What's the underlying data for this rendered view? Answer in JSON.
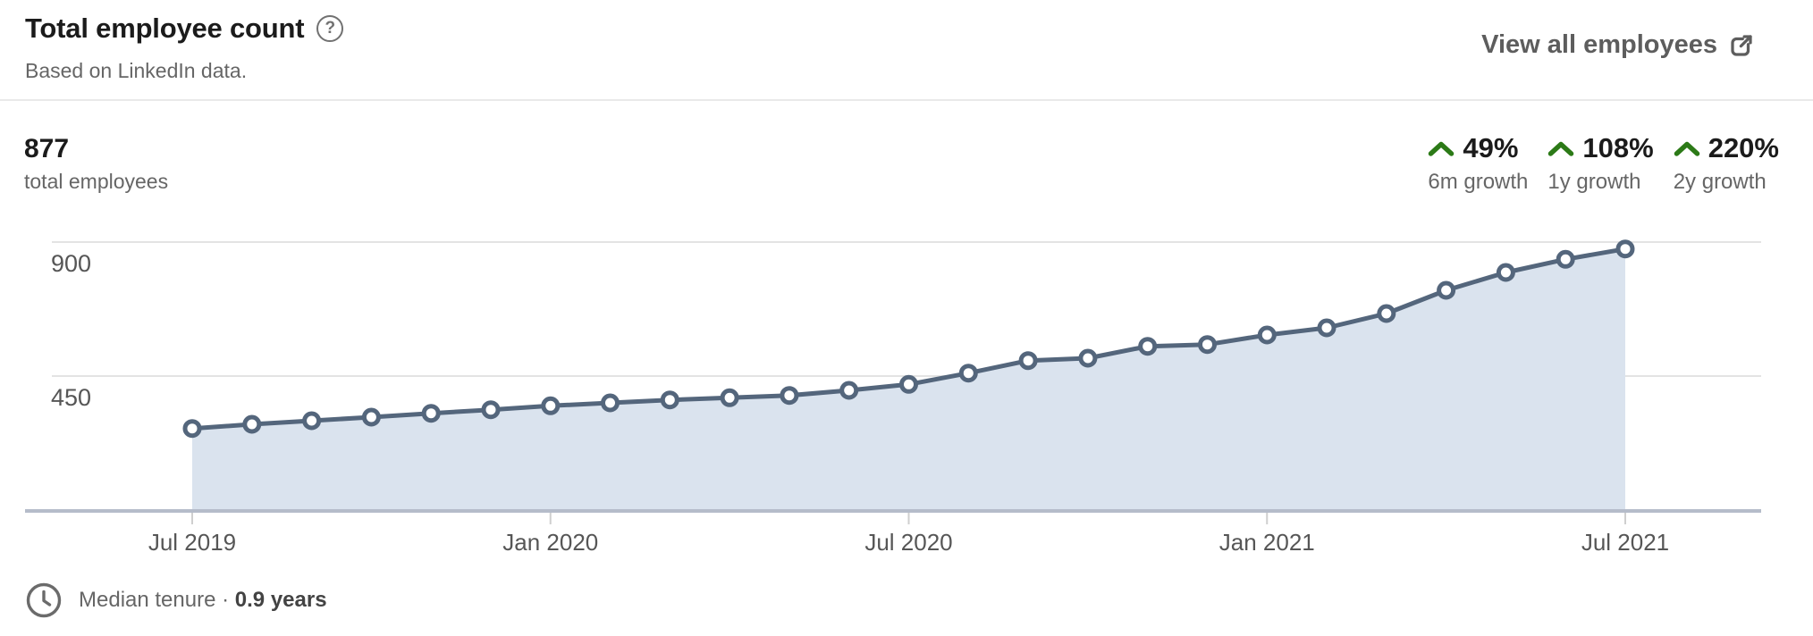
{
  "header": {
    "title": "Total employee count",
    "subtitle": "Based on LinkedIn data.",
    "help_icon": "question-mark-circle-icon",
    "view_all_label": "View all employees"
  },
  "summary": {
    "total_value": "877",
    "total_label": "total employees",
    "growth_stats": [
      {
        "value": "49%",
        "label": "6m growth",
        "direction": "up"
      },
      {
        "value": "108%",
        "label": "1y growth",
        "direction": "up"
      },
      {
        "value": "220%",
        "label": "2y growth",
        "direction": "up"
      }
    ]
  },
  "chart_data": {
    "type": "area",
    "title": "Total employee count",
    "x": [
      "Jul 2019",
      "Aug 2019",
      "Sep 2019",
      "Oct 2019",
      "Nov 2019",
      "Dec 2019",
      "Jan 2020",
      "Feb 2020",
      "Mar 2020",
      "Apr 2020",
      "May 2020",
      "Jun 2020",
      "Jul 2020",
      "Aug 2020",
      "Sep 2020",
      "Oct 2020",
      "Nov 2020",
      "Dec 2020",
      "Jan 2021",
      "Feb 2021",
      "Mar 2021",
      "Apr 2021",
      "May 2021",
      "Jun 2021",
      "Jul 2021"
    ],
    "values": [
      274,
      288,
      300,
      312,
      325,
      337,
      350,
      360,
      370,
      377,
      385,
      402,
      422,
      460,
      502,
      510,
      550,
      556,
      588,
      612,
      660,
      738,
      798,
      842,
      877
    ],
    "x_tick_labels": [
      "Jul 2019",
      "Jan 2020",
      "Jul 2020",
      "Jan 2021",
      "Jul 2021"
    ],
    "y_ticks": [
      450,
      900
    ],
    "ylim": [
      0,
      1000
    ],
    "grid": "horizontal",
    "legend": "none",
    "marker": "open-circle"
  },
  "footer": {
    "icon": "clock-icon",
    "label": "Median tenure",
    "separator": "·",
    "value": "0.9 years"
  },
  "colors": {
    "line": "#54667c",
    "area_fill": "#dae3ee",
    "marker_fill": "#ffffff",
    "gridline": "#e3e3e3",
    "baseline": "#b5bcca",
    "tick": "#cfcfcf",
    "axis_text": "#565656",
    "positive_green": "#2c7a17",
    "link_gray": "#5d5d5d"
  }
}
